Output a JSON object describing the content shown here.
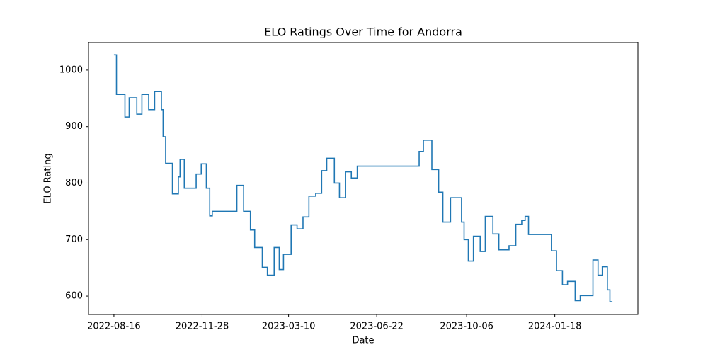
{
  "chart_data": {
    "type": "line",
    "title": "ELO Ratings Over Time for Andorra",
    "xlabel": "Date",
    "ylabel": "ELO Rating",
    "drawstyle": "steps-post",
    "x": [
      "2022-08-16",
      "2022-08-19",
      "2022-08-29",
      "2022-09-03",
      "2022-09-12",
      "2022-09-18",
      "2022-09-26",
      "2022-10-03",
      "2022-10-11",
      "2022-10-13",
      "2022-10-16",
      "2022-10-24",
      "2022-10-31",
      "2022-11-02",
      "2022-11-07",
      "2022-11-21",
      "2022-11-27",
      "2022-12-03",
      "2022-12-07",
      "2022-12-10",
      "2023-01-08",
      "2023-01-16",
      "2023-01-24",
      "2023-01-29",
      "2023-02-07",
      "2023-02-13",
      "2023-02-21",
      "2023-02-27",
      "2023-03-04",
      "2023-03-13",
      "2023-03-20",
      "2023-03-27",
      "2023-04-03",
      "2023-04-11",
      "2023-04-18",
      "2023-04-24",
      "2023-05-03",
      "2023-05-09",
      "2023-05-16",
      "2023-05-23",
      "2023-05-30",
      "2023-08-11",
      "2023-08-16",
      "2023-08-26",
      "2023-09-03",
      "2023-09-08",
      "2023-09-17",
      "2023-09-30",
      "2023-10-03",
      "2023-10-08",
      "2023-10-14",
      "2023-10-22",
      "2023-10-28",
      "2023-11-06",
      "2023-11-13",
      "2023-11-25",
      "2023-12-03",
      "2023-12-10",
      "2023-12-14",
      "2023-12-18",
      "2024-01-14",
      "2024-01-20",
      "2024-01-27",
      "2024-02-02",
      "2024-02-11",
      "2024-02-17",
      "2024-03-03",
      "2024-03-09",
      "2024-03-14",
      "2024-03-20",
      "2024-03-23",
      "2024-03-26"
    ],
    "series": [
      {
        "name": "Andorra",
        "color": "#1f77b4",
        "values": [
          1027,
          957,
          917,
          951,
          922,
          957,
          930,
          962,
          930,
          882,
          835,
          781,
          811,
          842,
          791,
          816,
          834,
          791,
          742,
          750,
          796,
          750,
          717,
          686,
          651,
          637,
          686,
          647,
          674,
          726,
          719,
          740,
          777,
          782,
          822,
          844,
          800,
          774,
          820,
          809,
          830,
          856,
          876,
          824,
          784,
          731,
          774,
          731,
          700,
          662,
          706,
          679,
          741,
          710,
          682,
          689,
          727,
          734,
          741,
          709,
          680,
          645,
          620,
          626,
          592,
          601,
          664,
          637,
          652,
          611,
          590,
          590
        ]
      }
    ],
    "xlim": [
      "2022-07-17",
      "2024-04-25"
    ],
    "xticks": [
      "2022-08-16",
      "2022-11-28",
      "2023-03-10",
      "2023-06-22",
      "2023-10-06",
      "2024-01-18"
    ],
    "ylim": [
      567.5,
      1048.75
    ],
    "yticks": [
      600,
      700,
      800,
      900,
      1000
    ]
  }
}
